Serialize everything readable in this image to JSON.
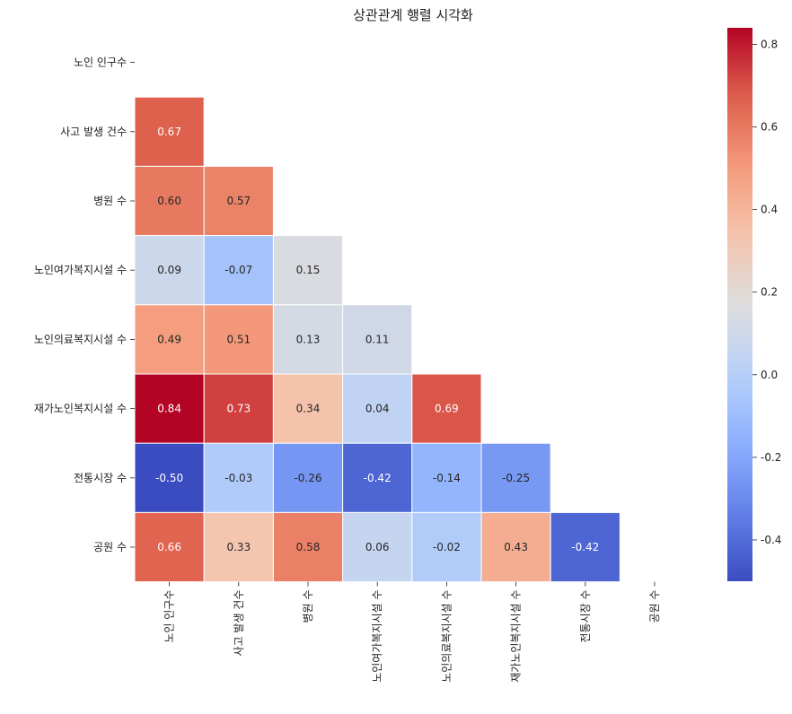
{
  "chart_data": {
    "type": "heatmap",
    "title": "상관관계 행렬 시각화",
    "labels": [
      "노인 인구수",
      "사고 발생 건수",
      "병원 수",
      "노인여가복지시설 수",
      "노인의료복지시설 수",
      "재가노인복지시설 수",
      "전통시장 수",
      "공원 수"
    ],
    "mask": "upper-triangle-including-diagonal",
    "values": [
      [
        null,
        null,
        null,
        null,
        null,
        null,
        null,
        null
      ],
      [
        0.67,
        null,
        null,
        null,
        null,
        null,
        null,
        null
      ],
      [
        0.6,
        0.57,
        null,
        null,
        null,
        null,
        null,
        null
      ],
      [
        0.09,
        -0.07,
        0.15,
        null,
        null,
        null,
        null,
        null
      ],
      [
        0.49,
        0.51,
        0.13,
        0.11,
        null,
        null,
        null,
        null
      ],
      [
        0.84,
        0.73,
        0.34,
        0.04,
        0.69,
        null,
        null,
        null
      ],
      [
        -0.5,
        -0.03,
        -0.26,
        -0.42,
        -0.14,
        -0.25,
        null,
        null
      ],
      [
        0.66,
        0.33,
        0.58,
        0.06,
        -0.02,
        0.43,
        -0.42,
        null
      ]
    ],
    "cell_labels": [
      [],
      [
        "0.67"
      ],
      [
        "0.60",
        "0.57"
      ],
      [
        "0.09",
        "-0.07",
        "0.15"
      ],
      [
        "0.49",
        "0.51",
        "0.13",
        "0.11"
      ],
      [
        "0.84",
        "0.73",
        "0.34",
        "0.04",
        "0.69"
      ],
      [
        "-0.50",
        "-0.03",
        "-0.26",
        "-0.42",
        "-0.14",
        "-0.25"
      ],
      [
        "0.66",
        "0.33",
        "0.58",
        "0.06",
        "-0.02",
        "0.43",
        "-0.42"
      ]
    ],
    "colormap": "coolwarm",
    "vmin": -0.5,
    "vmax": 0.84,
    "colorbar": {
      "ticks": [
        -0.4,
        -0.2,
        0.0,
        0.2,
        0.4,
        0.6,
        0.8
      ],
      "tick_labels": [
        "-0.4",
        "-0.2",
        "0.0",
        "0.2",
        "0.4",
        "0.6",
        "0.8"
      ]
    },
    "grid": false
  }
}
